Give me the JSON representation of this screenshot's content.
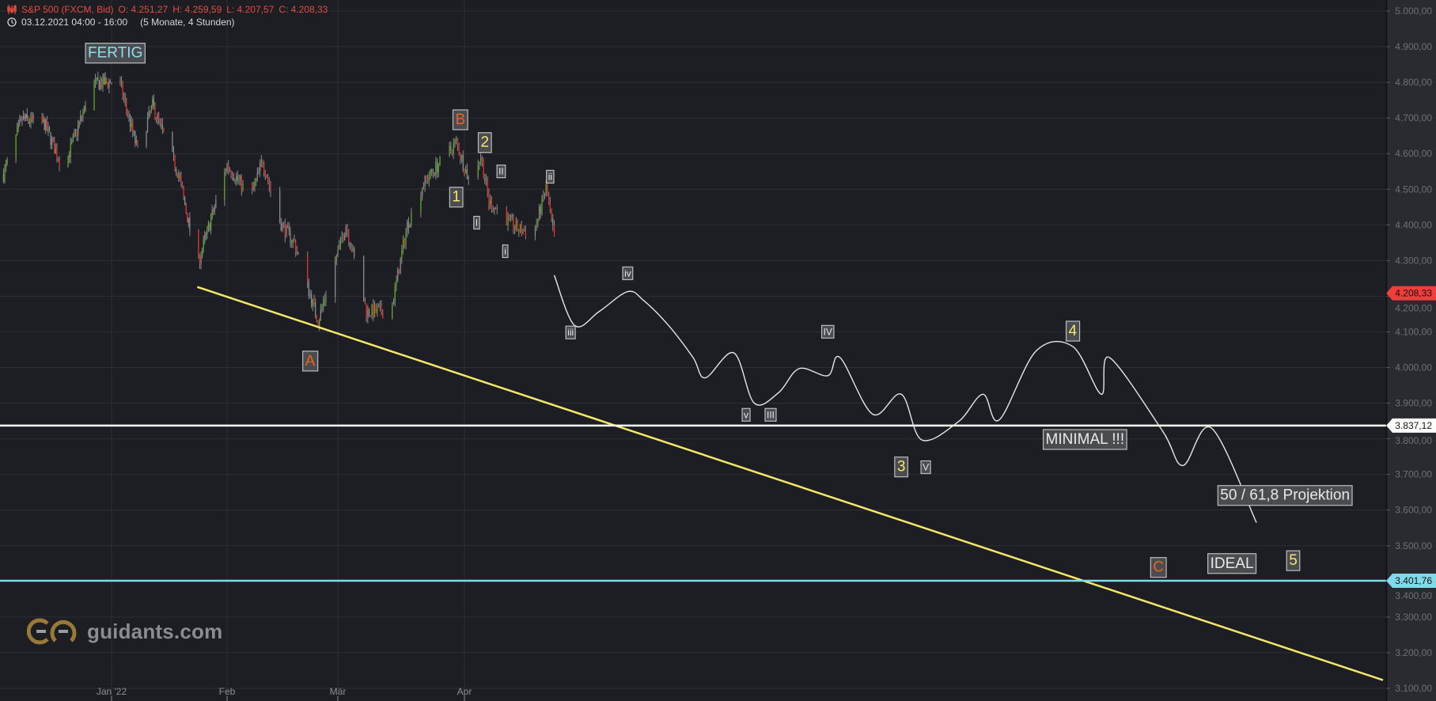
{
  "header": {
    "instrument": "S&P 500 (FXCM, Bid)",
    "open": "O: 4.251,27",
    "high": "H: 4.259,59",
    "low": "L: 4.207,57",
    "close": "C: 4.208,33",
    "range": "03.12.2021 04:00 - 16:00",
    "period": "(5 Monate, 4 Stunden)",
    "icons": {
      "instrument": "candlestick-chart-icon",
      "time": "clock-icon"
    }
  },
  "logo": {
    "text": "guidants.com"
  },
  "colors": {
    "background": "#1c1e23",
    "axis_background": "#2a2b30",
    "grid": "#2c2e34",
    "candle_up": "#5fa82a",
    "candle_down": "#e3302d",
    "trendline": "#f4e86a",
    "projection": "#e6e6e6",
    "hline_minimal": "#ffffff",
    "hline_ideal": "#7fdbea",
    "last_price": "#f23d3d",
    "label_orange": "#e8641e",
    "label_yellow": "#f4e86a",
    "label_white": "#e8e8e8",
    "label_cyan": "#8fdcef"
  },
  "chart_data": {
    "type": "candlestick",
    "title": "S&P 500 (FXCM, Bid)",
    "ylim": [
      3100,
      5000
    ],
    "y_ticks": [
      "5.000,00",
      "4.900,00",
      "4.800,00",
      "4.700,00",
      "4.600,00",
      "4.500,00",
      "4.400,00",
      "4.300,00",
      "4.200,00",
      "4.100,00",
      "4.000,00",
      "3.900,00",
      "3.800,00",
      "3.700,00",
      "3.600,00",
      "3.500,00",
      "3.400,00",
      "3.300,00",
      "3.200,00",
      "3.100,00"
    ],
    "y_tick_values": [
      5000,
      4900,
      4800,
      4700,
      4600,
      4500,
      4400,
      4300,
      4200,
      4100,
      4000,
      3900,
      3800,
      3700,
      3600,
      3500,
      3400,
      3300,
      3200,
      3100
    ],
    "x_ticks": [
      {
        "label": "Jan '22",
        "date": "2022-01-01"
      },
      {
        "label": "Feb",
        "date": "2022-02-01"
      },
      {
        "label": "Mär",
        "date": "2022-03-01"
      },
      {
        "label": "Apr",
        "date": "2022-04-01"
      }
    ],
    "grid": true,
    "price_path": [
      [
        "2021-12-03",
        4542
      ],
      [
        "2021-12-08",
        4697
      ],
      [
        "2021-12-14",
        4684
      ],
      [
        "2021-12-19",
        4555
      ],
      [
        "2021-12-27",
        4794
      ],
      [
        "2022-01-03",
        4805
      ],
      [
        "2022-01-08",
        4607
      ],
      [
        "2022-01-12",
        4735
      ],
      [
        "2022-01-19",
        4542
      ],
      [
        "2022-01-24",
        4285
      ],
      [
        "2022-01-28",
        4427
      ],
      [
        "2022-02-01",
        4568
      ],
      [
        "2022-02-07",
        4478
      ],
      [
        "2022-02-10",
        4581
      ],
      [
        "2022-02-14",
        4414
      ],
      [
        "2022-02-18",
        4349
      ],
      [
        "2022-02-24",
        4131
      ],
      [
        "2022-03-03",
        4401
      ],
      [
        "2022-03-08",
        4157
      ],
      [
        "2022-03-14",
        4157
      ],
      [
        "2022-03-18",
        4401
      ],
      [
        "2022-03-22",
        4517
      ],
      [
        "2022-03-30",
        4632
      ],
      [
        "2022-04-02",
        4529
      ],
      [
        "2022-04-05",
        4594
      ],
      [
        "2022-04-07",
        4465
      ],
      [
        "2022-04-14",
        4388
      ],
      [
        "2022-04-18",
        4375
      ],
      [
        "2022-04-21",
        4504
      ],
      [
        "2022-04-24",
        4285
      ],
      [
        "2022-04-25",
        4208.33
      ]
    ],
    "projection_path": [
      [
        "2022-04-23",
        4259
      ],
      [
        "2022-04-28",
        4118
      ],
      [
        "2022-05-04",
        4157
      ],
      [
        "2022-05-11",
        4213
      ],
      [
        "2022-05-15",
        4187
      ],
      [
        "2022-05-21",
        4118
      ],
      [
        "2022-05-27",
        4028
      ],
      [
        "2022-05-30",
        3971
      ],
      [
        "2022-06-06",
        4041
      ],
      [
        "2022-06-11",
        3900
      ],
      [
        "2022-06-17",
        3930
      ],
      [
        "2022-06-22",
        3997
      ],
      [
        "2022-06-29",
        3977
      ],
      [
        "2022-07-02",
        4028
      ],
      [
        "2022-07-10",
        3869
      ],
      [
        "2022-07-17",
        3925
      ],
      [
        "2022-07-22",
        3797
      ],
      [
        "2022-07-31",
        3848
      ],
      [
        "2022-08-06",
        3925
      ],
      [
        "2022-08-10",
        3853
      ],
      [
        "2022-08-19",
        4046
      ],
      [
        "2022-08-28",
        4059
      ],
      [
        "2022-09-04",
        3925
      ],
      [
        "2022-09-06",
        4028
      ],
      [
        "2022-09-19",
        3822
      ],
      [
        "2022-09-24",
        3725
      ],
      [
        "2022-10-01",
        3830
      ],
      [
        "2022-10-12",
        3565
      ]
    ],
    "trendline": [
      [
        "2022-01-24",
        4226
      ],
      [
        "2022-11-12",
        3123
      ]
    ],
    "horizontal_lines": [
      {
        "price": 3837.12,
        "label": "3.837,12",
        "color": "#ffffff"
      },
      {
        "price": 3401.76,
        "label": "3.401,76",
        "color": "#7fdbea"
      }
    ],
    "last_price": {
      "price": 4208.33,
      "label": "4.208,33"
    },
    "annotations": [
      {
        "text": "FERTIG",
        "date": "2022-01-02",
        "price": 4885,
        "color": "cyan",
        "size": "large"
      },
      {
        "text": "B",
        "date": "2022-03-31",
        "price": 4698,
        "color": "orange",
        "size": "large"
      },
      {
        "text": "2",
        "date": "2022-04-06",
        "price": 4634,
        "color": "yellow",
        "size": "large"
      },
      {
        "text": "1",
        "date": "2022-03-30",
        "price": 4481,
        "color": "yellow",
        "size": "large"
      },
      {
        "text": "II",
        "date": "2022-04-10",
        "price": 4551,
        "color": "white",
        "size": "small"
      },
      {
        "text": "ii",
        "date": "2022-04-22",
        "price": 4536,
        "color": "white",
        "size": "small"
      },
      {
        "text": "I",
        "date": "2022-04-04",
        "price": 4407,
        "color": "white",
        "size": "small"
      },
      {
        "text": "i",
        "date": "2022-04-11",
        "price": 4327,
        "color": "white",
        "size": "small"
      },
      {
        "text": "iv",
        "date": "2022-05-11",
        "price": 4265,
        "color": "white",
        "size": "small"
      },
      {
        "text": "iii",
        "date": "2022-04-27",
        "price": 4099,
        "color": "white",
        "size": "small"
      },
      {
        "text": "A",
        "date": "2022-02-22",
        "price": 4021,
        "color": "orange",
        "size": "large"
      },
      {
        "text": "IV",
        "date": "2022-06-29",
        "price": 4101,
        "color": "white",
        "size": "small"
      },
      {
        "text": "v",
        "date": "2022-06-09",
        "price": 3868,
        "color": "white",
        "size": "small"
      },
      {
        "text": "III",
        "date": "2022-06-15",
        "price": 3868,
        "color": "white",
        "size": "small"
      },
      {
        "text": "4",
        "date": "2022-08-28",
        "price": 4105,
        "color": "yellow",
        "size": "large"
      },
      {
        "text": "MINIMAL !!!",
        "date": "2022-08-31",
        "price": 3801,
        "color": "white",
        "size": "large"
      },
      {
        "text": "3",
        "date": "2022-07-17",
        "price": 3724,
        "color": "yellow",
        "size": "large"
      },
      {
        "text": "V",
        "date": "2022-07-23",
        "price": 3721,
        "color": "white",
        "size": "small"
      },
      {
        "text": "50 / 61,8 Projektion",
        "date": "2022-10-19",
        "price": 3644,
        "color": "white",
        "size": "large"
      },
      {
        "text": "IDEAL",
        "date": "2022-10-06",
        "price": 3453,
        "color": "white",
        "size": "large"
      },
      {
        "text": "C",
        "date": "2022-09-18",
        "price": 3442,
        "color": "orange",
        "size": "large"
      },
      {
        "text": "5",
        "date": "2022-10-21",
        "price": 3461,
        "color": "yellow",
        "size": "large"
      }
    ]
  }
}
